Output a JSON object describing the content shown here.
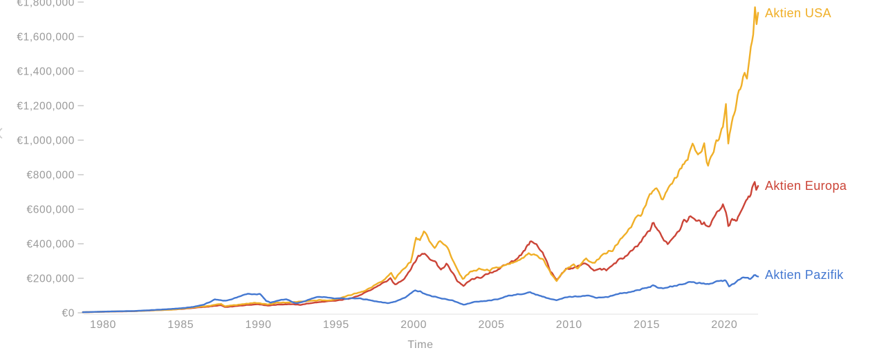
{
  "page": {
    "background": "#ffffff"
  },
  "chart_data": {
    "type": "line",
    "title": "",
    "xlabel": "Time",
    "ylabel": "",
    "grid": false,
    "currency": "EUR",
    "x_range": [
      1978.7,
      2022.2
    ],
    "y_range": [
      0,
      1800000
    ],
    "legend_position": "right-at-line-end",
    "axis_text_color": "#9a9a9a",
    "axis_line_color": "#e6e6e6",
    "tick_dash_color": "#cccccc",
    "y_axis": {
      "tick_values": [
        1800000,
        1600000,
        1400000,
        1200000,
        1000000,
        800000,
        600000,
        400000,
        200000,
        0
      ],
      "tick_labels": [
        "€1,800,000",
        "€1,600,000",
        "€1,400,000",
        "€1,200,000",
        "€1,000,000",
        "€800,000",
        "€600,000",
        "€400,000",
        "€200,000",
        "€0"
      ]
    },
    "x_axis": {
      "tick_values": [
        1980,
        1985,
        1990,
        1995,
        2000,
        2005,
        2010,
        2015,
        2020
      ],
      "tick_labels": [
        "1980",
        "1985",
        "1990",
        "1995",
        "2000",
        "2005",
        "2010",
        "2015",
        "2020"
      ]
    },
    "series": [
      {
        "name": "Aktien USA",
        "color": "#F0AF27",
        "points": [
          [
            1978.7,
            3500
          ],
          [
            1979.5,
            5000
          ],
          [
            1980.3,
            7000
          ],
          [
            1981,
            8500
          ],
          [
            1982,
            9500
          ],
          [
            1982.8,
            13000
          ],
          [
            1983.6,
            16000
          ],
          [
            1984.4,
            18000
          ],
          [
            1985.2,
            25000
          ],
          [
            1986,
            33000
          ],
          [
            1986.8,
            40000
          ],
          [
            1987.6,
            52000
          ],
          [
            1987.85,
            38000
          ],
          [
            1988.4,
            44000
          ],
          [
            1989,
            50000
          ],
          [
            1989.8,
            58000
          ],
          [
            1990.6,
            48000
          ],
          [
            1991.2,
            58000
          ],
          [
            1991.9,
            60000
          ],
          [
            1992.6,
            64000
          ],
          [
            1993.3,
            68000
          ],
          [
            1994,
            74000
          ],
          [
            1994.6,
            71000
          ],
          [
            1995.3,
            86000
          ],
          [
            1996,
            105000
          ],
          [
            1996.8,
            125000
          ],
          [
            1997.5,
            160000
          ],
          [
            1998,
            185000
          ],
          [
            1998.55,
            230000
          ],
          [
            1998.8,
            196000
          ],
          [
            1999.3,
            250000
          ],
          [
            1999.8,
            290000
          ],
          [
            2000.15,
            440000
          ],
          [
            2000.4,
            410000
          ],
          [
            2000.65,
            482000
          ],
          [
            2001,
            420000
          ],
          [
            2001.35,
            375000
          ],
          [
            2001.7,
            420000
          ],
          [
            2002.1,
            390000
          ],
          [
            2002.5,
            310000
          ],
          [
            2002.8,
            248000
          ],
          [
            2003.15,
            196000
          ],
          [
            2003.6,
            235000
          ],
          [
            2004.2,
            252000
          ],
          [
            2004.8,
            246000
          ],
          [
            2005.5,
            262000
          ],
          [
            2006.2,
            282000
          ],
          [
            2006.9,
            305000
          ],
          [
            2007.4,
            345000
          ],
          [
            2007.9,
            332000
          ],
          [
            2008.4,
            300000
          ],
          [
            2008.85,
            225000
          ],
          [
            2009.2,
            186000
          ],
          [
            2009.8,
            252000
          ],
          [
            2010.3,
            278000
          ],
          [
            2010.55,
            262000
          ],
          [
            2011.1,
            312000
          ],
          [
            2011.65,
            288000
          ],
          [
            2012.2,
            340000
          ],
          [
            2012.8,
            362000
          ],
          [
            2013.4,
            430000
          ],
          [
            2014,
            505000
          ],
          [
            2014.7,
            585000
          ],
          [
            2015.2,
            680000
          ],
          [
            2015.55,
            722000
          ],
          [
            2015.95,
            655000
          ],
          [
            2016.3,
            700000
          ],
          [
            2016.8,
            782000
          ],
          [
            2017.4,
            855000
          ],
          [
            2017.95,
            962000
          ],
          [
            2018.3,
            905000
          ],
          [
            2018.7,
            968000
          ],
          [
            2018.95,
            842000
          ],
          [
            2019.4,
            962000
          ],
          [
            2019.9,
            1065000
          ],
          [
            2020.1,
            1190000
          ],
          [
            2020.25,
            972000
          ],
          [
            2020.55,
            1145000
          ],
          [
            2020.85,
            1235000
          ],
          [
            2021.1,
            1305000
          ],
          [
            2021.3,
            1385000
          ],
          [
            2021.45,
            1325000
          ],
          [
            2021.7,
            1560000
          ],
          [
            2021.85,
            1645000
          ],
          [
            2021.97,
            1795000
          ],
          [
            2022.07,
            1672000
          ],
          [
            2022.17,
            1738000
          ]
        ]
      },
      {
        "name": "Aktien Europa",
        "color": "#CB4437",
        "points": [
          [
            1978.7,
            3500
          ],
          [
            1979.5,
            4800
          ],
          [
            1980.3,
            6500
          ],
          [
            1981,
            7800
          ],
          [
            1982,
            9200
          ],
          [
            1982.8,
            12500
          ],
          [
            1983.6,
            15500
          ],
          [
            1984.4,
            18500
          ],
          [
            1985.2,
            23000
          ],
          [
            1986,
            30000
          ],
          [
            1986.8,
            36000
          ],
          [
            1987.6,
            44000
          ],
          [
            1987.85,
            33000
          ],
          [
            1988.5,
            38000
          ],
          [
            1989.3,
            46000
          ],
          [
            1990,
            50000
          ],
          [
            1990.6,
            42000
          ],
          [
            1991.3,
            48000
          ],
          [
            1992,
            50000
          ],
          [
            1992.7,
            46000
          ],
          [
            1993.5,
            58000
          ],
          [
            1994.2,
            64000
          ],
          [
            1995,
            70000
          ],
          [
            1995.8,
            82000
          ],
          [
            1996.5,
            100000
          ],
          [
            1997.2,
            130000
          ],
          [
            1997.8,
            162000
          ],
          [
            1998.5,
            196000
          ],
          [
            1998.8,
            162000
          ],
          [
            1999.4,
            200000
          ],
          [
            2000,
            282000
          ],
          [
            2000.3,
            330000
          ],
          [
            2000.7,
            345000
          ],
          [
            2001.1,
            312000
          ],
          [
            2001.45,
            292000
          ],
          [
            2001.75,
            246000
          ],
          [
            2002.1,
            282000
          ],
          [
            2002.5,
            232000
          ],
          [
            2002.8,
            186000
          ],
          [
            2003.2,
            156000
          ],
          [
            2003.7,
            192000
          ],
          [
            2004.3,
            206000
          ],
          [
            2005,
            232000
          ],
          [
            2005.7,
            266000
          ],
          [
            2006.3,
            296000
          ],
          [
            2006.9,
            332000
          ],
          [
            2007.5,
            415000
          ],
          [
            2007.9,
            392000
          ],
          [
            2008.3,
            352000
          ],
          [
            2008.8,
            242000
          ],
          [
            2009.2,
            186000
          ],
          [
            2009.8,
            252000
          ],
          [
            2010.4,
            262000
          ],
          [
            2011,
            292000
          ],
          [
            2011.6,
            242000
          ],
          [
            2012,
            256000
          ],
          [
            2012.4,
            246000
          ],
          [
            2013,
            292000
          ],
          [
            2013.7,
            332000
          ],
          [
            2014.4,
            385000
          ],
          [
            2015.2,
            480000
          ],
          [
            2015.45,
            520000
          ],
          [
            2015.95,
            442000
          ],
          [
            2016.35,
            402000
          ],
          [
            2016.9,
            462000
          ],
          [
            2017.4,
            525000
          ],
          [
            2017.9,
            560000
          ],
          [
            2018.35,
            528000
          ],
          [
            2018.95,
            498000
          ],
          [
            2019.5,
            582000
          ],
          [
            2019.9,
            625000
          ],
          [
            2020.1,
            592000
          ],
          [
            2020.25,
            502000
          ],
          [
            2020.5,
            542000
          ],
          [
            2020.8,
            528000
          ],
          [
            2021.1,
            592000
          ],
          [
            2021.4,
            645000
          ],
          [
            2021.7,
            682000
          ],
          [
            2021.95,
            758000
          ],
          [
            2022.05,
            712000
          ],
          [
            2022.17,
            735000
          ]
        ]
      },
      {
        "name": "Aktien Pazifik",
        "color": "#4478D1",
        "points": [
          [
            1978.7,
            3500
          ],
          [
            1979.5,
            5500
          ],
          [
            1980.3,
            7500
          ],
          [
            1981,
            9000
          ],
          [
            1982,
            10500
          ],
          [
            1982.8,
            14000
          ],
          [
            1983.6,
            18000
          ],
          [
            1984.4,
            22000
          ],
          [
            1985.2,
            28000
          ],
          [
            1985.8,
            34000
          ],
          [
            1986.5,
            48000
          ],
          [
            1987.2,
            76000
          ],
          [
            1987.9,
            70000
          ],
          [
            1988.6,
            88000
          ],
          [
            1989.3,
            112000
          ],
          [
            1989.9,
            107000
          ],
          [
            1990.1,
            111000
          ],
          [
            1990.5,
            70000
          ],
          [
            1990.8,
            59000
          ],
          [
            1991.3,
            72000
          ],
          [
            1991.8,
            78000
          ],
          [
            1992.4,
            55000
          ],
          [
            1992.9,
            64000
          ],
          [
            1993.6,
            88000
          ],
          [
            1994.2,
            92000
          ],
          [
            1994.9,
            84000
          ],
          [
            1995.6,
            82000
          ],
          [
            1996.3,
            85000
          ],
          [
            1997,
            76000
          ],
          [
            1997.8,
            62000
          ],
          [
            1998.3,
            56000
          ],
          [
            1998.8,
            64000
          ],
          [
            1999.5,
            92000
          ],
          [
            2000.1,
            132000
          ],
          [
            2000.5,
            120000
          ],
          [
            2001,
            100000
          ],
          [
            2001.8,
            82000
          ],
          [
            2002.5,
            72000
          ],
          [
            2003.2,
            46000
          ],
          [
            2003.9,
            62000
          ],
          [
            2004.6,
            68000
          ],
          [
            2005.4,
            78000
          ],
          [
            2006.1,
            100000
          ],
          [
            2006.9,
            108000
          ],
          [
            2007.5,
            118000
          ],
          [
            2008.1,
            100000
          ],
          [
            2008.8,
            80000
          ],
          [
            2009.2,
            72000
          ],
          [
            2009.9,
            92000
          ],
          [
            2010.6,
            96000
          ],
          [
            2011.2,
            100000
          ],
          [
            2011.8,
            88000
          ],
          [
            2012.5,
            92000
          ],
          [
            2013.2,
            110000
          ],
          [
            2014,
            122000
          ],
          [
            2014.8,
            140000
          ],
          [
            2015.4,
            158000
          ],
          [
            2015.95,
            140000
          ],
          [
            2016.5,
            150000
          ],
          [
            2017.2,
            165000
          ],
          [
            2017.9,
            180000
          ],
          [
            2018.5,
            170000
          ],
          [
            2019,
            166000
          ],
          [
            2019.8,
            188000
          ],
          [
            2020.1,
            184000
          ],
          [
            2020.3,
            155000
          ],
          [
            2020.8,
            180000
          ],
          [
            2021.2,
            206000
          ],
          [
            2021.6,
            196000
          ],
          [
            2021.9,
            216000
          ],
          [
            2022.17,
            210000
          ]
        ]
      }
    ]
  }
}
